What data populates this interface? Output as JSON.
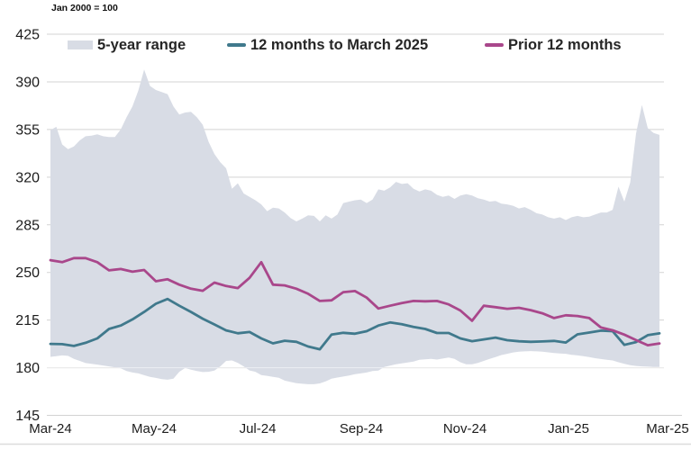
{
  "chart_data": {
    "type": "area",
    "title": "Jan 2000 = 100",
    "xlabel": "",
    "ylabel": "",
    "ylim": [
      145,
      425
    ],
    "grid": true,
    "legend_position": "top",
    "x_tick_labels": [
      "Mar-24",
      "May-24",
      "Jul-24",
      "Sep-24",
      "Nov-24",
      "Jan-25",
      "Mar-25"
    ],
    "y_ticks": [
      145,
      180,
      215,
      250,
      285,
      320,
      355,
      390,
      425
    ],
    "band": {
      "name": "5-year range",
      "color": "#d8dce5",
      "top": [
        354.5,
        357,
        344,
        340.5,
        342.5,
        347,
        350,
        350.5,
        351.5,
        350,
        349.5,
        349.5,
        355,
        364,
        372,
        383.5,
        399,
        387,
        384,
        382.5,
        381,
        372,
        366,
        367.5,
        368,
        364,
        358.5,
        346,
        337,
        331,
        326.5,
        311.5,
        315.5,
        308,
        305.5,
        303,
        300,
        295,
        297.5,
        297,
        294,
        290,
        287.5,
        289.5,
        292,
        291.5,
        287.5,
        292,
        289.5,
        292.5,
        301,
        302,
        303,
        303.5,
        301,
        303.5,
        311,
        310,
        312.5,
        316.5,
        315,
        315.5,
        311.5,
        309.5,
        311,
        310,
        307,
        305.5,
        306.5,
        304,
        306.5,
        307.5,
        306.5,
        304.5,
        303.5,
        302,
        302.5,
        300.5,
        300,
        299,
        297,
        298,
        296,
        293.5,
        292.5,
        290.5,
        289.5,
        290.5,
        288.5,
        290.5,
        291.5,
        290.5,
        291,
        292.5,
        294,
        294,
        296,
        313,
        302,
        316,
        352,
        373,
        356,
        352.5,
        351
      ],
      "bottom": [
        188,
        188.5,
        189,
        188.7,
        186.5,
        185,
        183.4,
        182.8,
        182.3,
        181.6,
        181,
        180.3,
        179.5,
        177.5,
        176.5,
        175.8,
        174.5,
        173.3,
        172.5,
        171.6,
        171.2,
        172,
        177,
        179.8,
        178.5,
        177.5,
        176.8,
        177,
        177.9,
        181,
        185,
        185.3,
        183.5,
        181,
        178,
        177,
        174.6,
        174,
        173.3,
        172.6,
        170.5,
        169.5,
        168.7,
        168.2,
        167.9,
        167.9,
        168.5,
        170,
        172,
        172.8,
        173.5,
        174.2,
        175.2,
        175.8,
        176.5,
        177.5,
        177.9,
        180.5,
        181.5,
        182.5,
        183.2,
        183.8,
        184.5,
        185.8,
        186.2,
        186.5,
        186,
        186.7,
        187.5,
        186.5,
        184,
        182.5,
        182.5,
        183.5,
        185,
        186.5,
        187.8,
        189.3,
        190.2,
        191.2,
        191.8,
        192,
        192.2,
        192,
        191.8,
        191.3,
        190.8,
        190.5,
        190.2,
        189.5,
        189,
        188.5,
        187.8,
        187,
        186.4,
        185.8,
        185.3,
        184,
        182.8,
        181.8,
        181.3,
        181,
        180.8,
        180.6,
        180.5
      ]
    },
    "series": [
      {
        "name": "12 months to March 2025",
        "color": "#40798c",
        "values": [
          197.5,
          197.3,
          196,
          198.3,
          201.5,
          208.5,
          211,
          215.5,
          221,
          227,
          230.5,
          225.5,
          221,
          216,
          211.8,
          207.4,
          205.3,
          206.2,
          201.5,
          197.9,
          199.8,
          199,
          195.6,
          193.5,
          204.3,
          205.6,
          205,
          206.8,
          211,
          213.2,
          212,
          210,
          208.5,
          205.5,
          205.5,
          201.5,
          199.5,
          200.8,
          202.1,
          200.2,
          199.4,
          199,
          199.3,
          199.7,
          198.5,
          204.5,
          205.8,
          207.2,
          206.8,
          196.8,
          198.8,
          203.9,
          205.2
        ]
      },
      {
        "name": "Prior 12 months",
        "color": "#a9478b",
        "values": [
          259,
          257.5,
          260.5,
          260.5,
          257.5,
          251.5,
          252.5,
          250.5,
          251.8,
          243.5,
          245,
          241,
          238,
          236.5,
          242.5,
          240,
          238.5,
          246,
          257.5,
          241,
          240.5,
          238,
          234.3,
          229,
          229.5,
          235.5,
          236.3,
          231.5,
          223.5,
          225.5,
          227.5,
          229,
          228.8,
          229,
          226.5,
          222,
          214.5,
          225.5,
          224.5,
          223.3,
          224,
          222.3,
          220,
          216.5,
          218.5,
          218,
          216.5,
          209.5,
          207.5,
          204.3,
          200.3,
          196.5,
          197.8
        ]
      }
    ]
  }
}
